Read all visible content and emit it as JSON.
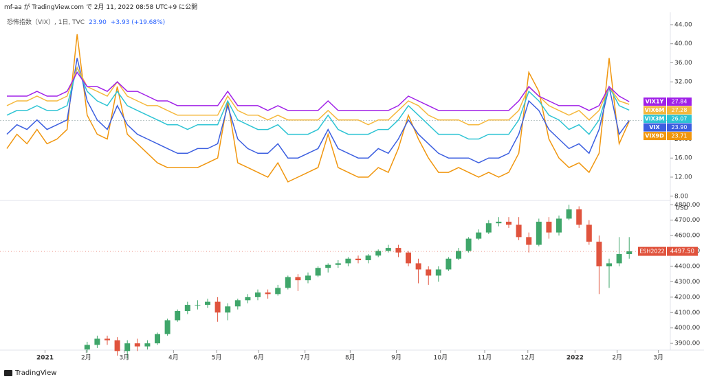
{
  "header": "mf-aa が TradingView.com で 2月 11, 2022 08:58 UTC+9 に公開",
  "footer": "TradingView",
  "chart_data": [
    {
      "type": "line",
      "title": "恐怖指数（VIX）, 1日, TVC",
      "change": "+3.93 (+19.68%)",
      "x": [
        0,
        1,
        2,
        3,
        4,
        5,
        6,
        7,
        8,
        9,
        10,
        11,
        12,
        13,
        14,
        15,
        16,
        17,
        18,
        19,
        20,
        21,
        22,
        23,
        24,
        25,
        26,
        27,
        28,
        29,
        30,
        31,
        32,
        33,
        34,
        35,
        36,
        37,
        38,
        39,
        40,
        41,
        42,
        43,
        44,
        45,
        46,
        47,
        48,
        49,
        50,
        51,
        52,
        53,
        54,
        55,
        56,
        57,
        58,
        59,
        60,
        61,
        62
      ],
      "xlim": [
        0,
        66.3
      ],
      "ylim": [
        7.1,
        46.3
      ],
      "yticks": [
        {
          "value": 8,
          "label": "8.00"
        },
        {
          "value": 12,
          "label": "12.00"
        },
        {
          "value": 16,
          "label": "16.00"
        },
        {
          "value": 20,
          "label": "20.00"
        },
        {
          "value": 24,
          "label": "24.00"
        },
        {
          "value": 28,
          "label": "28.00"
        },
        {
          "value": 32,
          "label": "32.00"
        },
        {
          "value": 36,
          "label": "36.00"
        },
        {
          "value": 40,
          "label": "40.00"
        },
        {
          "value": 44,
          "label": "44.00"
        }
      ],
      "grid": false,
      "series": [
        {
          "name": "VIX1Y",
          "color": "#a020e8",
          "values": [
            29,
            29,
            29,
            30,
            29,
            29,
            30,
            34,
            31,
            31,
            30,
            32,
            30,
            30,
            29,
            28,
            28,
            27,
            27,
            27,
            27,
            27,
            30,
            27,
            27,
            27,
            26,
            27,
            26,
            26,
            26,
            26,
            28,
            26,
            26,
            26,
            26,
            26,
            26,
            27,
            29,
            28,
            27,
            26,
            26,
            26,
            26,
            26,
            26,
            26,
            26,
            28,
            31,
            29,
            28,
            27,
            27,
            27,
            26,
            27,
            31,
            29,
            27.84
          ]
        },
        {
          "name": "VIX6M",
          "color": "#f5b83d",
          "values": [
            27,
            28,
            28,
            29,
            28,
            28,
            29,
            35,
            31,
            30,
            29,
            32,
            29,
            28,
            27,
            27,
            26,
            25,
            25,
            25,
            25,
            25,
            29,
            26,
            25,
            25,
            24,
            25,
            24,
            24,
            24,
            24,
            26,
            24,
            24,
            24,
            23,
            24,
            24,
            26,
            28,
            27,
            25,
            24,
            24,
            24,
            23,
            23,
            24,
            24,
            24,
            26,
            31,
            29,
            27,
            26,
            25,
            26,
            24,
            26,
            31,
            28,
            27.28
          ]
        },
        {
          "name": "VIX3M",
          "color": "#2ec4d4",
          "values": [
            25,
            26,
            26,
            27,
            26,
            26,
            27,
            35,
            30,
            28,
            27,
            30,
            27,
            26,
            25,
            24,
            23,
            23,
            22,
            23,
            23,
            23,
            28,
            24,
            23,
            22,
            22,
            23,
            21,
            21,
            21,
            22,
            25,
            22,
            21,
            21,
            21,
            22,
            22,
            24,
            27,
            25,
            23,
            21,
            21,
            21,
            20,
            20,
            21,
            21,
            21,
            24,
            30,
            28,
            25,
            24,
            22,
            23,
            21,
            24,
            31,
            27,
            26.07
          ]
        },
        {
          "name": "VIX",
          "color": "#3c5fe0",
          "values": [
            21,
            23,
            22,
            24,
            22,
            23,
            24,
            37,
            28,
            24,
            22,
            27,
            23,
            21,
            20,
            19,
            18,
            17,
            17,
            18,
            18,
            19,
            27,
            20,
            18,
            17,
            17,
            19,
            16,
            16,
            17,
            18,
            22,
            18,
            17,
            16,
            16,
            18,
            17,
            20,
            24,
            21,
            19,
            17,
            16,
            16,
            16,
            15,
            16,
            16,
            17,
            21,
            28,
            26,
            22,
            20,
            18,
            19,
            17,
            22,
            31,
            21,
            23.9
          ],
          "value_labels": [
            null,
            null,
            null,
            null,
            null,
            null,
            null,
            null,
            null,
            null,
            null,
            null,
            null,
            null,
            null,
            null,
            null,
            null,
            null,
            null,
            null,
            null,
            null,
            null,
            null,
            null,
            null,
            null,
            null,
            null,
            null,
            null,
            null,
            null,
            null,
            null,
            null,
            null,
            null,
            null,
            null,
            null,
            null,
            null,
            null,
            null,
            null,
            null,
            null,
            null,
            null,
            null,
            null,
            null,
            null,
            null,
            null,
            null,
            null,
            null,
            null,
            null,
            "23.90"
          ]
        },
        {
          "name": "VIX9D",
          "color": "#f0960e",
          "values": [
            18,
            21,
            19,
            22,
            19,
            20,
            22,
            42,
            25,
            21,
            20,
            31,
            21,
            19,
            17,
            15,
            14,
            14,
            14,
            14,
            15,
            16,
            28,
            15,
            14,
            13,
            12,
            15,
            11,
            12,
            13,
            14,
            21,
            14,
            13,
            12,
            12,
            14,
            13,
            18,
            25,
            20,
            16,
            13,
            13,
            14,
            13,
            12,
            13,
            12,
            13,
            17,
            34,
            30,
            20,
            16,
            14,
            15,
            13,
            17,
            37,
            19,
            23.71
          ]
        }
      ]
    },
    {
      "type": "candlestick",
      "name": "ESH2022",
      "y_unit": "USD",
      "x": [
        8,
        9,
        10,
        11,
        12,
        13,
        14,
        15,
        16,
        17,
        18,
        19,
        20,
        21,
        22,
        23,
        24,
        25,
        26,
        27,
        28,
        29,
        30,
        31,
        32,
        33,
        34,
        35,
        36,
        37,
        38,
        39,
        40,
        41,
        42,
        43,
        44,
        45,
        46,
        47,
        48,
        49,
        50,
        51,
        52,
        53,
        54,
        55,
        56,
        57,
        58,
        59,
        60,
        61,
        62
      ],
      "open": [
        3860,
        3890,
        3930,
        3920,
        3850,
        3900,
        3880,
        3900,
        3960,
        4050,
        4110,
        4150,
        4150,
        4170,
        4100,
        4140,
        4180,
        4200,
        4230,
        4220,
        4260,
        4330,
        4310,
        4340,
        4390,
        4410,
        4420,
        4450,
        4440,
        4470,
        4500,
        4520,
        4490,
        4420,
        4380,
        4340,
        4380,
        4450,
        4500,
        4580,
        4620,
        4680,
        4690,
        4670,
        4590,
        4540,
        4690,
        4620,
        4710,
        4770,
        4670,
        4560,
        4400,
        4420,
        4480
      ],
      "high": [
        3910,
        3950,
        3950,
        3940,
        3920,
        3930,
        3920,
        3970,
        4060,
        4120,
        4170,
        4180,
        4190,
        4200,
        4160,
        4190,
        4220,
        4250,
        4250,
        4280,
        4340,
        4350,
        4360,
        4400,
        4420,
        4440,
        4460,
        4470,
        4480,
        4510,
        4540,
        4540,
        4500,
        4450,
        4400,
        4400,
        4460,
        4520,
        4590,
        4640,
        4700,
        4720,
        4720,
        4720,
        4620,
        4710,
        4720,
        4730,
        4800,
        4790,
        4700,
        4600,
        4450,
        4590,
        4590
      ],
      "low": [
        3840,
        3870,
        3890,
        3820,
        3800,
        3850,
        3860,
        3890,
        3950,
        4040,
        4090,
        4120,
        4130,
        4040,
        4050,
        4120,
        4160,
        4180,
        4190,
        4210,
        4250,
        4240,
        4290,
        4330,
        4360,
        4390,
        4400,
        4420,
        4420,
        4460,
        4490,
        4460,
        4400,
        4290,
        4280,
        4300,
        4370,
        4440,
        4490,
        4570,
        4610,
        4660,
        4650,
        4570,
        4490,
        4530,
        4580,
        4600,
        4700,
        4650,
        4540,
        4220,
        4260,
        4400,
        4450
      ],
      "close": [
        3890,
        3930,
        3920,
        3850,
        3900,
        3880,
        3900,
        3960,
        4050,
        4110,
        4150,
        4150,
        4170,
        4100,
        4140,
        4180,
        4200,
        4230,
        4220,
        4260,
        4330,
        4310,
        4340,
        4390,
        4410,
        4420,
        4450,
        4440,
        4470,
        4500,
        4520,
        4490,
        4420,
        4380,
        4340,
        4380,
        4450,
        4500,
        4580,
        4620,
        4680,
        4690,
        4670,
        4590,
        4540,
        4690,
        4620,
        4710,
        4770,
        4670,
        4560,
        4400,
        4420,
        4480,
        4497.5
      ],
      "value_labels": [
        null,
        null,
        null,
        null,
        null,
        null,
        null,
        null,
        null,
        null,
        null,
        null,
        null,
        null,
        null,
        null,
        null,
        null,
        null,
        null,
        null,
        null,
        null,
        null,
        null,
        null,
        null,
        null,
        null,
        null,
        null,
        null,
        null,
        null,
        null,
        null,
        null,
        null,
        null,
        null,
        null,
        null,
        null,
        null,
        null,
        null,
        null,
        null,
        null,
        null,
        null,
        null,
        null,
        null,
        "4497.50"
      ],
      "up_color": "#3fa66a",
      "down_color": "#e0533d",
      "label_color": "#e0533d",
      "xlim": [
        0,
        66.3
      ],
      "ylim": [
        3856,
        4828
      ],
      "yticks": [
        {
          "value": 3900,
          "label": "3900.00"
        },
        {
          "value": 4000,
          "label": "4000.00"
        },
        {
          "value": 4100,
          "label": "4100.00"
        },
        {
          "value": 4200,
          "label": "4200.00"
        },
        {
          "value": 4300,
          "label": "4300.00"
        },
        {
          "value": 4400,
          "label": "4400.00"
        },
        {
          "value": 4500,
          "label": "4500.00"
        },
        {
          "value": 4600,
          "label": "4600.00"
        },
        {
          "value": 4700,
          "label": "4700.00"
        },
        {
          "value": 4800,
          "label": "4800.00"
        }
      ],
      "xticks": [
        {
          "value": 3.8,
          "label": "2021"
        },
        {
          "value": 7.9,
          "label": "2月"
        },
        {
          "value": 11.7,
          "label": "3月"
        },
        {
          "value": 16.6,
          "label": "4月"
        },
        {
          "value": 20.9,
          "label": "5月"
        },
        {
          "value": 25.1,
          "label": "6月"
        },
        {
          "value": 29.7,
          "label": "7月"
        },
        {
          "value": 34.2,
          "label": "8月"
        },
        {
          "value": 38.8,
          "label": "9月"
        },
        {
          "value": 43.2,
          "label": "10月"
        },
        {
          "value": 47.6,
          "label": "11月"
        },
        {
          "value": 51.9,
          "label": "12月"
        },
        {
          "value": 56.6,
          "label": "2022"
        },
        {
          "value": 60.8,
          "label": "2月"
        },
        {
          "value": 64.9,
          "label": "3月"
        }
      ]
    }
  ]
}
